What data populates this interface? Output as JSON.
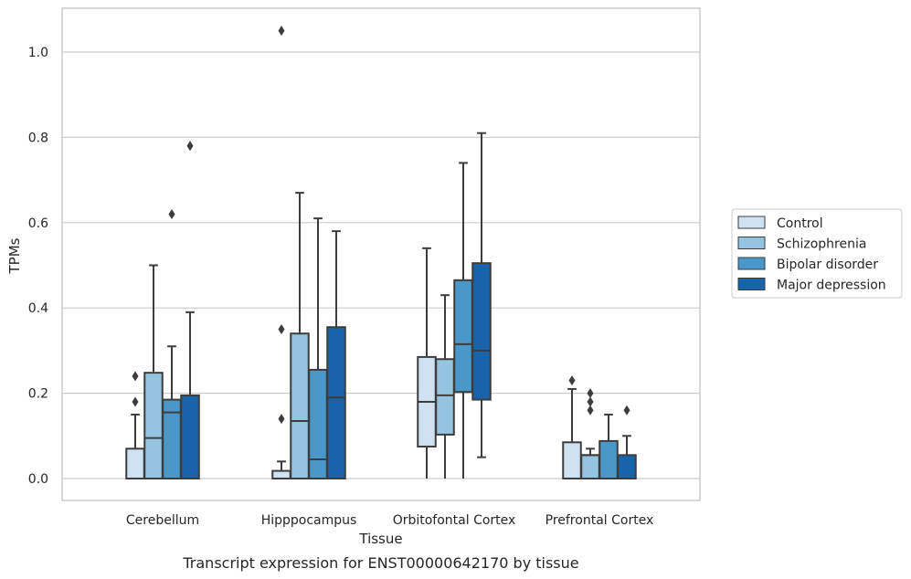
{
  "chart_data": {
    "type": "box",
    "title": "",
    "caption": "Transcript expression for ENST00000642170 by tissue",
    "xlabel": "Tissue",
    "ylabel": "TPMs",
    "ylim": [
      -0.05,
      1.1
    ],
    "yticks": [
      0.0,
      0.2,
      0.4,
      0.6,
      0.8,
      1.0
    ],
    "ytick_labels": [
      "0.0",
      "0.2",
      "0.4",
      "0.6",
      "0.8",
      "1.0"
    ],
    "grid": true,
    "legend_position": "right",
    "categories": [
      "Cerebellum",
      "Hipppocampus",
      "Orbitofontal Cortex",
      "Prefrontal Cortex"
    ],
    "series": [
      {
        "name": "Control",
        "color": "#d0e1f2",
        "boxes": [
          {
            "whislo": 0.0,
            "q1": 0.0,
            "med": 0.0,
            "q3": 0.07,
            "whishi": 0.15,
            "fliers": [
              0.18,
              0.24
            ]
          },
          {
            "whislo": 0.0,
            "q1": 0.0,
            "med": 0.0,
            "q3": 0.018,
            "whishi": 0.04,
            "fliers": [
              0.14,
              0.35,
              1.05
            ]
          },
          {
            "whislo": 0.0,
            "q1": 0.075,
            "med": 0.18,
            "q3": 0.285,
            "whishi": 0.54,
            "fliers": []
          },
          {
            "whislo": 0.0,
            "q1": 0.0,
            "med": 0.0,
            "q3": 0.085,
            "whishi": 0.21,
            "fliers": [
              0.23
            ]
          }
        ]
      },
      {
        "name": "Schizophrenia",
        "color": "#94c4df",
        "boxes": [
          {
            "whislo": 0.0,
            "q1": 0.0,
            "med": 0.095,
            "q3": 0.248,
            "whishi": 0.5,
            "fliers": []
          },
          {
            "whislo": 0.0,
            "q1": 0.0,
            "med": 0.135,
            "q3": 0.34,
            "whishi": 0.67,
            "fliers": []
          },
          {
            "whislo": 0.0,
            "q1": 0.103,
            "med": 0.195,
            "q3": 0.28,
            "whishi": 0.43,
            "fliers": []
          },
          {
            "whislo": 0.0,
            "q1": 0.0,
            "med": 0.055,
            "q3": 0.055,
            "whishi": 0.07,
            "fliers": [
              0.16,
              0.18,
              0.2
            ]
          }
        ]
      },
      {
        "name": "Bipolar disorder",
        "color": "#4a98c9",
        "boxes": [
          {
            "whislo": 0.0,
            "q1": 0.0,
            "med": 0.155,
            "q3": 0.185,
            "whishi": 0.31,
            "fliers": [
              0.62
            ]
          },
          {
            "whislo": 0.0,
            "q1": 0.0,
            "med": 0.045,
            "q3": 0.255,
            "whishi": 0.61,
            "fliers": []
          },
          {
            "whislo": 0.0,
            "q1": 0.203,
            "med": 0.315,
            "q3": 0.465,
            "whishi": 0.74,
            "fliers": []
          },
          {
            "whislo": 0.0,
            "q1": 0.0,
            "med": 0.0,
            "q3": 0.088,
            "whishi": 0.15,
            "fliers": []
          }
        ]
      },
      {
        "name": "Major depression",
        "color": "#1764ab",
        "boxes": [
          {
            "whislo": 0.0,
            "q1": 0.0,
            "med": 0.0,
            "q3": 0.195,
            "whishi": 0.39,
            "fliers": [
              0.78
            ]
          },
          {
            "whislo": 0.0,
            "q1": 0.0,
            "med": 0.19,
            "q3": 0.355,
            "whishi": 0.58,
            "fliers": []
          },
          {
            "whislo": 0.05,
            "q1": 0.185,
            "med": 0.3,
            "q3": 0.505,
            "whishi": 0.81,
            "fliers": []
          },
          {
            "whislo": 0.0,
            "q1": 0.0,
            "med": 0.0,
            "q3": 0.055,
            "whishi": 0.1,
            "fliers": [
              0.16
            ]
          }
        ]
      }
    ]
  }
}
